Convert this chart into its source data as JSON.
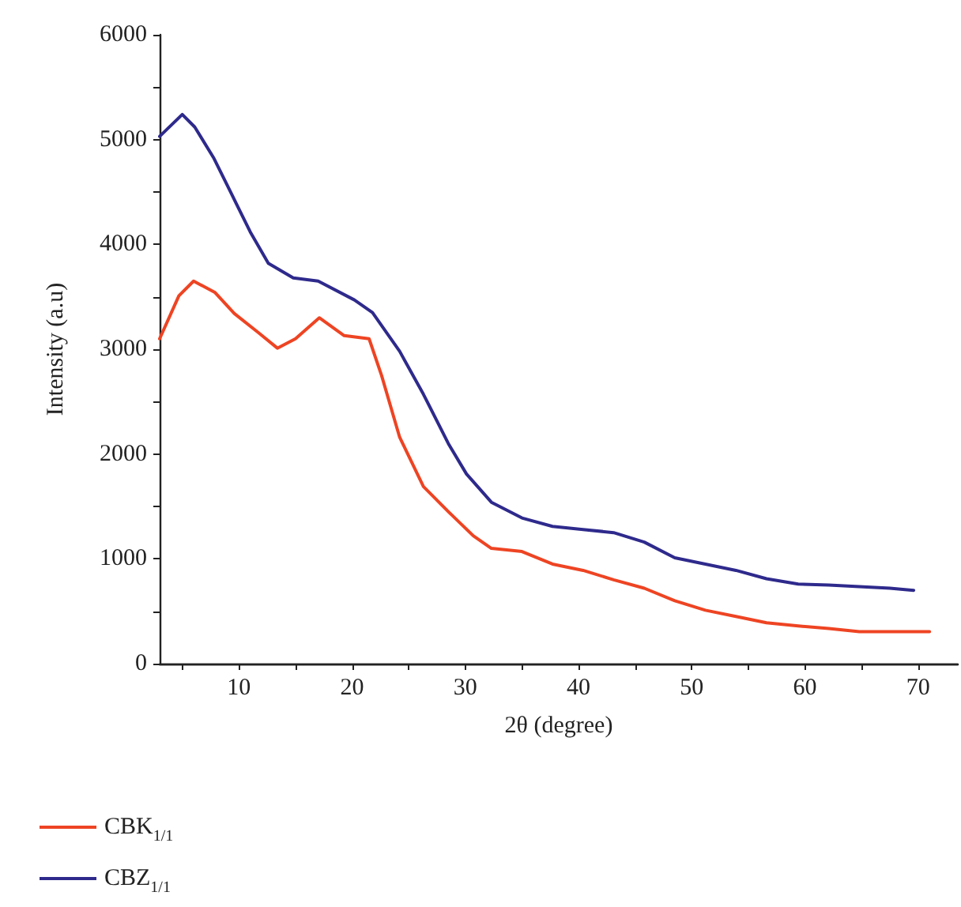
{
  "chart_data": {
    "type": "line",
    "xlabel": "2θ (degree)",
    "ylabel": "Intensity (a.u)",
    "xlim": [
      3,
      73.5
    ],
    "xticks": [
      {
        "value": 5,
        "label": null
      },
      10,
      {
        "value": 15,
        "label": null
      },
      20,
      {
        "value": 25,
        "label": null
      },
      30,
      {
        "value": 35,
        "label": null
      },
      40,
      {
        "value": 45,
        "label": null
      },
      50,
      {
        "value": 55,
        "label": null
      },
      60,
      {
        "value": 65,
        "label": null
      },
      70
    ],
    "ylim": [
      0,
      6000
    ],
    "yticks": [
      0,
      {
        "value": 500,
        "label": null
      },
      1000,
      {
        "value": 1500,
        "label": null
      },
      2000,
      {
        "value": 2500,
        "label": null
      },
      3000,
      {
        "value": 3500,
        "label": null
      },
      4000,
      {
        "value": 4500,
        "label": null
      },
      5000,
      {
        "value": 5500,
        "label": null
      },
      6000
    ],
    "grid": false,
    "legend": "bottom left",
    "marker": "none",
    "line_style": "solid",
    "series": [
      {
        "name": "CBK$_{1/1}$",
        "color": "#ee4423",
        "x": [
          3,
          4.7,
          6,
          7.9,
          9.6,
          11.7,
          13.4,
          15,
          17.1,
          19.3,
          21.5,
          22.6,
          24.2,
          26.3,
          28.5,
          30.7,
          32.3,
          35,
          37.7,
          40.4,
          43.1,
          45.8,
          48.5,
          51.2,
          53.9,
          56.6,
          59.4,
          62.1,
          64.8,
          67.5,
          71
        ],
        "values": [
          3100,
          3510,
          3650,
          3540,
          3340,
          3160,
          3010,
          3100,
          3300,
          3130,
          3100,
          2750,
          2160,
          1690,
          1450,
          1220,
          1100,
          1070,
          950,
          890,
          800,
          720,
          600,
          510,
          450,
          390,
          360,
          335,
          305,
          305,
          305
        ]
      },
      {
        "name": "CBZ$_{1/1}$",
        "color": "#2e2a8c",
        "x": [
          3,
          5,
          6.1,
          7.8,
          9.4,
          11,
          12.6,
          14.8,
          17,
          20.2,
          21.8,
          24.2,
          26.3,
          28.5,
          30.1,
          32.3,
          35,
          37.7,
          40.4,
          43.1,
          45.8,
          48.5,
          51.2,
          53.9,
          56.6,
          59.4,
          62.1,
          64.8,
          67.5,
          69.6
        ],
        "values": [
          5030,
          5240,
          5120,
          4820,
          4470,
          4120,
          3820,
          3680,
          3650,
          3470,
          3350,
          2980,
          2570,
          2100,
          1810,
          1540,
          1390,
          1310,
          1280,
          1250,
          1160,
          1010,
          950,
          890,
          810,
          760,
          750,
          735,
          720,
          700
        ]
      }
    ]
  }
}
